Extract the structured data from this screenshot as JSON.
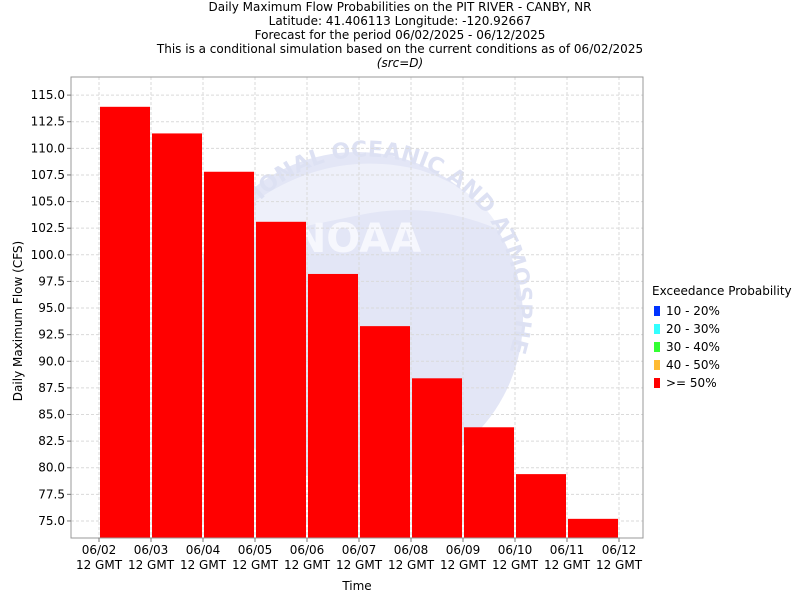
{
  "titles": {
    "line1": "Daily Maximum Flow Probabilities on the PIT RIVER - CANBY, NR",
    "line2": "Latitude: 41.406113 Longitude: -120.92667",
    "line3": "Forecast for the period 06/02/2025 - 06/12/2025",
    "line4": "This is a conditional simulation based on the current conditions as of 06/02/2025",
    "line5": "(src=D)"
  },
  "legend": {
    "title": "Exceedance Probability",
    "items": [
      {
        "label": "10 - 20%",
        "color": "#0033ff"
      },
      {
        "label": "20 - 30%",
        "color": "#33ffff"
      },
      {
        "label": "30 - 40%",
        "color": "#33ff33"
      },
      {
        "label": "40 - 50%",
        "color": "#ffbb33"
      },
      {
        "label": ">= 50%",
        "color": "#ff0000"
      }
    ]
  },
  "watermark": {
    "text_arc": "NATIONAL OCEANIC AND ATMOSPHERIC ADMINISTRATION",
    "center_text": "NOAA"
  },
  "chart_data": {
    "type": "bar",
    "title": "Daily Maximum Flow Probabilities on the PIT RIVER - CANBY, NR",
    "xlabel": "Time",
    "ylabel": "Daily Maximum Flow (CFS)",
    "ylim": [
      73.4,
      116.7
    ],
    "yticks": [
      "75.0",
      "77.5",
      "80.0",
      "82.5",
      "85.0",
      "87.5",
      "90.0",
      "92.5",
      "95.0",
      "97.5",
      "100.0",
      "102.5",
      "105.0",
      "107.5",
      "110.0",
      "112.5",
      "115.0"
    ],
    "xticks": [
      {
        "date": "06/02",
        "time": "12 GMT"
      },
      {
        "date": "06/03",
        "time": "12 GMT"
      },
      {
        "date": "06/04",
        "time": "12 GMT"
      },
      {
        "date": "06/05",
        "time": "12 GMT"
      },
      {
        "date": "06/06",
        "time": "12 GMT"
      },
      {
        "date": "06/07",
        "time": "12 GMT"
      },
      {
        "date": "06/08",
        "time": "12 GMT"
      },
      {
        "date": "06/09",
        "time": "12 GMT"
      },
      {
        "date": "06/10",
        "time": "12 GMT"
      },
      {
        "date": "06/11",
        "time": "12 GMT"
      },
      {
        "date": "06/12",
        "time": "12 GMT"
      }
    ],
    "bars": [
      {
        "start": "06/02",
        "end": "06/03",
        "value": 113.9
      },
      {
        "start": "06/03",
        "end": "06/04",
        "value": 111.4
      },
      {
        "start": "06/04",
        "end": "06/05",
        "value": 107.8
      },
      {
        "start": "06/05",
        "end": "06/06",
        "value": 103.1
      },
      {
        "start": "06/06",
        "end": "06/07",
        "value": 98.2
      },
      {
        "start": "06/07",
        "end": "06/08",
        "value": 93.3
      },
      {
        "start": "06/08",
        "end": "06/09",
        "value": 88.4
      },
      {
        "start": "06/09",
        "end": "06/10",
        "value": 83.8
      },
      {
        "start": "06/10",
        "end": "06/11",
        "value": 79.4
      },
      {
        "start": "06/11",
        "end": "06/12",
        "value": 75.2
      }
    ],
    "bar_color": "#ff0000",
    "grid": true,
    "legend_placement": "right"
  }
}
